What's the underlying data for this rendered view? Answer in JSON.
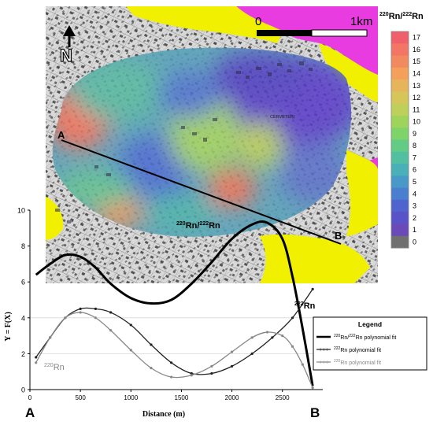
{
  "map": {
    "north_label": "N",
    "scale_start": "0",
    "scale_end": "1km",
    "colorbar_title_sup1": "220",
    "colorbar_title_rn1": "Rn/",
    "colorbar_title_sup2": "222",
    "colorbar_title_rn2": "Rn",
    "colorbar_ticks": [
      "17",
      "16",
      "15",
      "14",
      "13",
      "12",
      "11",
      "10",
      "9",
      "8",
      "7",
      "6",
      "5",
      "4",
      "3",
      "2",
      "1",
      "0"
    ],
    "colorbar_colors": [
      "#f0606a",
      "#f27566",
      "#f28a60",
      "#f4a05a",
      "#e6b45a",
      "#d6c65a",
      "#bed05a",
      "#9ed45a",
      "#7ed468",
      "#62cc84",
      "#52c0a0",
      "#4ab0b8",
      "#4898c8",
      "#4a7ecf",
      "#5064d0",
      "#5a52c8",
      "#6a4ab8",
      "#707070"
    ],
    "town_label": "CERVETERI",
    "point_a": "A",
    "point_b": "B"
  },
  "plot": {
    "xlabel": "Distance (m)",
    "ylabel": "Y = F(X)",
    "label_a": "A",
    "label_b": "B",
    "series_label_ratio_sup1": "220",
    "series_label_ratio_rn1": "Rn/",
    "series_label_ratio_sup2": "222",
    "series_label_ratio_rn2": "Rn",
    "series_label_222_sup": "222",
    "series_label_222_rn": "Rn",
    "series_label_220_sup": "220",
    "series_label_220_rn": "Rn",
    "legend": {
      "title": "Legend",
      "items": [
        {
          "sup": "220",
          "mid": "Rn/",
          "sup2": "222",
          "text": "Rn polynomial fit"
        },
        {
          "sup": "222",
          "mid": "",
          "sup2": "",
          "text": "Rn polynomial fit"
        },
        {
          "sup": "220",
          "mid": "",
          "sup2": "",
          "text": "Rn polynomial fit"
        }
      ]
    }
  },
  "chart_data": {
    "type": "line",
    "xlabel": "Distance (m)",
    "ylabel": "Y = F(X)",
    "xlim": [
      0,
      2900
    ],
    "ylim": [
      0,
      10
    ],
    "x_ticks": [
      0,
      500,
      1000,
      1500,
      2000,
      2500
    ],
    "y_ticks": [
      0,
      2,
      4,
      6,
      8,
      10
    ],
    "grid": true,
    "legend_position": "right",
    "series": [
      {
        "name": "220Rn/222Rn polynomial fit",
        "color": "#000000",
        "x": [
          60,
          200,
          350,
          500,
          650,
          800,
          1000,
          1200,
          1400,
          1600,
          1800,
          2000,
          2200,
          2350,
          2500,
          2600,
          2700,
          2800
        ],
        "values": [
          6.4,
          7.0,
          7.5,
          7.4,
          6.8,
          5.9,
          5.1,
          4.8,
          5.0,
          5.9,
          7.1,
          8.4,
          9.2,
          9.3,
          8.4,
          6.3,
          3.4,
          0.2
        ]
      },
      {
        "name": "222Rn polynomial fit",
        "color": "#222222",
        "x": [
          60,
          200,
          350,
          500,
          650,
          800,
          1000,
          1200,
          1400,
          1600,
          1800,
          2000,
          2200,
          2400,
          2600,
          2800
        ],
        "values": [
          1.8,
          2.9,
          4.0,
          4.5,
          4.5,
          4.3,
          3.6,
          2.5,
          1.5,
          0.9,
          0.9,
          1.3,
          2.0,
          2.9,
          4.0,
          5.6
        ]
      },
      {
        "name": "220Rn polynomial fit",
        "color": "#888888",
        "x": [
          60,
          200,
          350,
          500,
          650,
          800,
          1000,
          1200,
          1400,
          1600,
          1800,
          2000,
          2200,
          2350,
          2500,
          2600,
          2700,
          2800
        ],
        "values": [
          1.5,
          2.9,
          4.0,
          4.3,
          4.0,
          3.3,
          2.2,
          1.2,
          0.7,
          0.8,
          1.3,
          2.1,
          2.9,
          3.2,
          3.0,
          2.4,
          1.4,
          0.1
        ]
      }
    ]
  }
}
